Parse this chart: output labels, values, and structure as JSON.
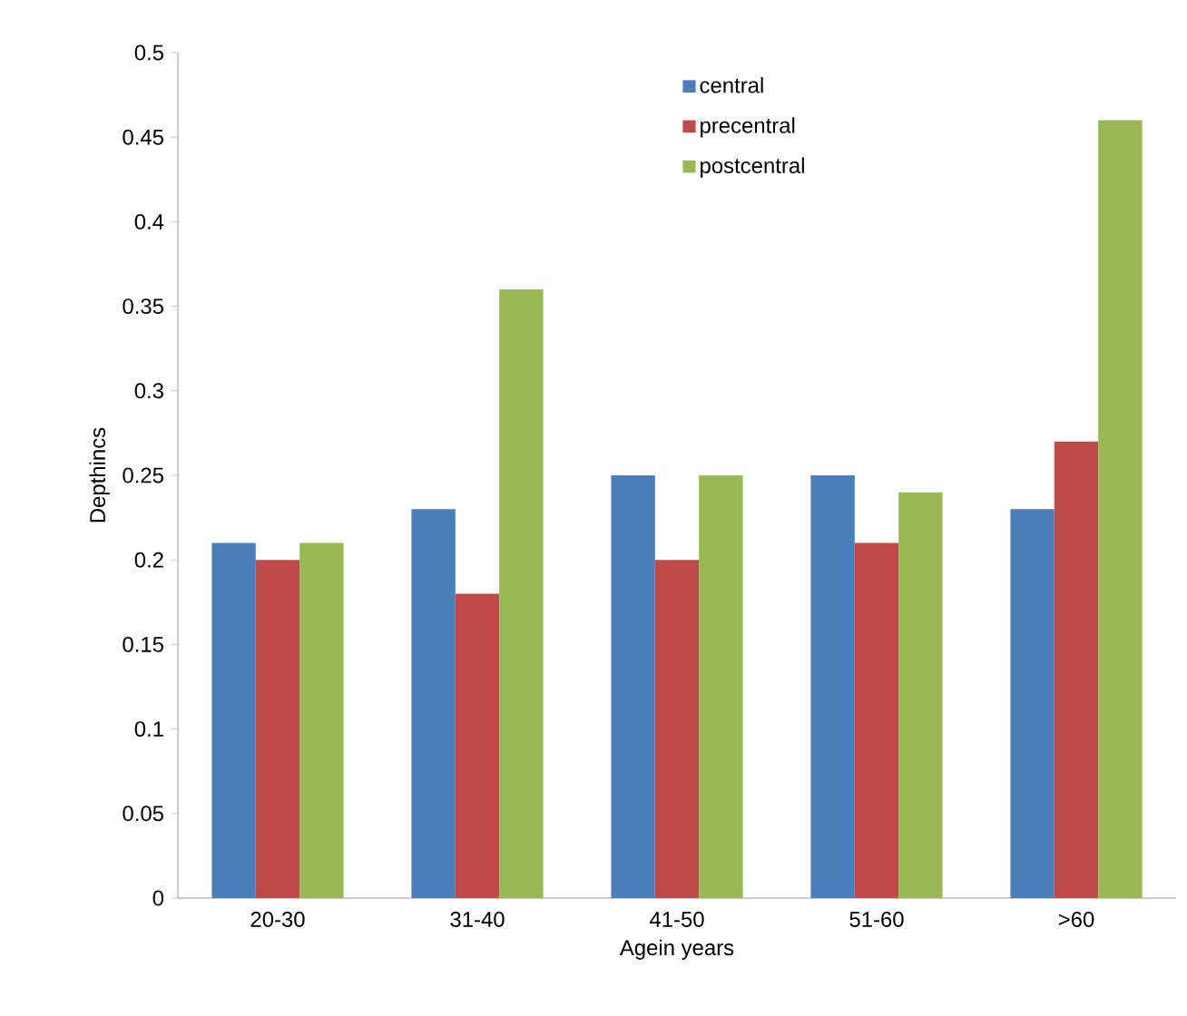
{
  "chart_data": {
    "type": "bar",
    "xlabel": "Agein years",
    "ylabel": "Depthincs",
    "categories": [
      "20-30",
      "31-40",
      "41-50",
      "51-60",
      ">60"
    ],
    "series": [
      {
        "name": "central",
        "color": "#4a7ebb",
        "values": [
          0.21,
          0.23,
          0.25,
          0.25,
          0.23
        ]
      },
      {
        "name": "precentral",
        "color": "#be4b48",
        "values": [
          0.2,
          0.18,
          0.2,
          0.21,
          0.27
        ]
      },
      {
        "name": "postcentral",
        "color": "#98b954",
        "values": [
          0.21,
          0.36,
          0.25,
          0.24,
          0.46
        ]
      }
    ],
    "ylim": [
      0,
      0.5
    ],
    "yticks": [
      0,
      0.05,
      0.1,
      0.15,
      0.2,
      0.25,
      0.3,
      0.35,
      0.4,
      0.45,
      0.5
    ],
    "legend": "top",
    "grid": false
  }
}
